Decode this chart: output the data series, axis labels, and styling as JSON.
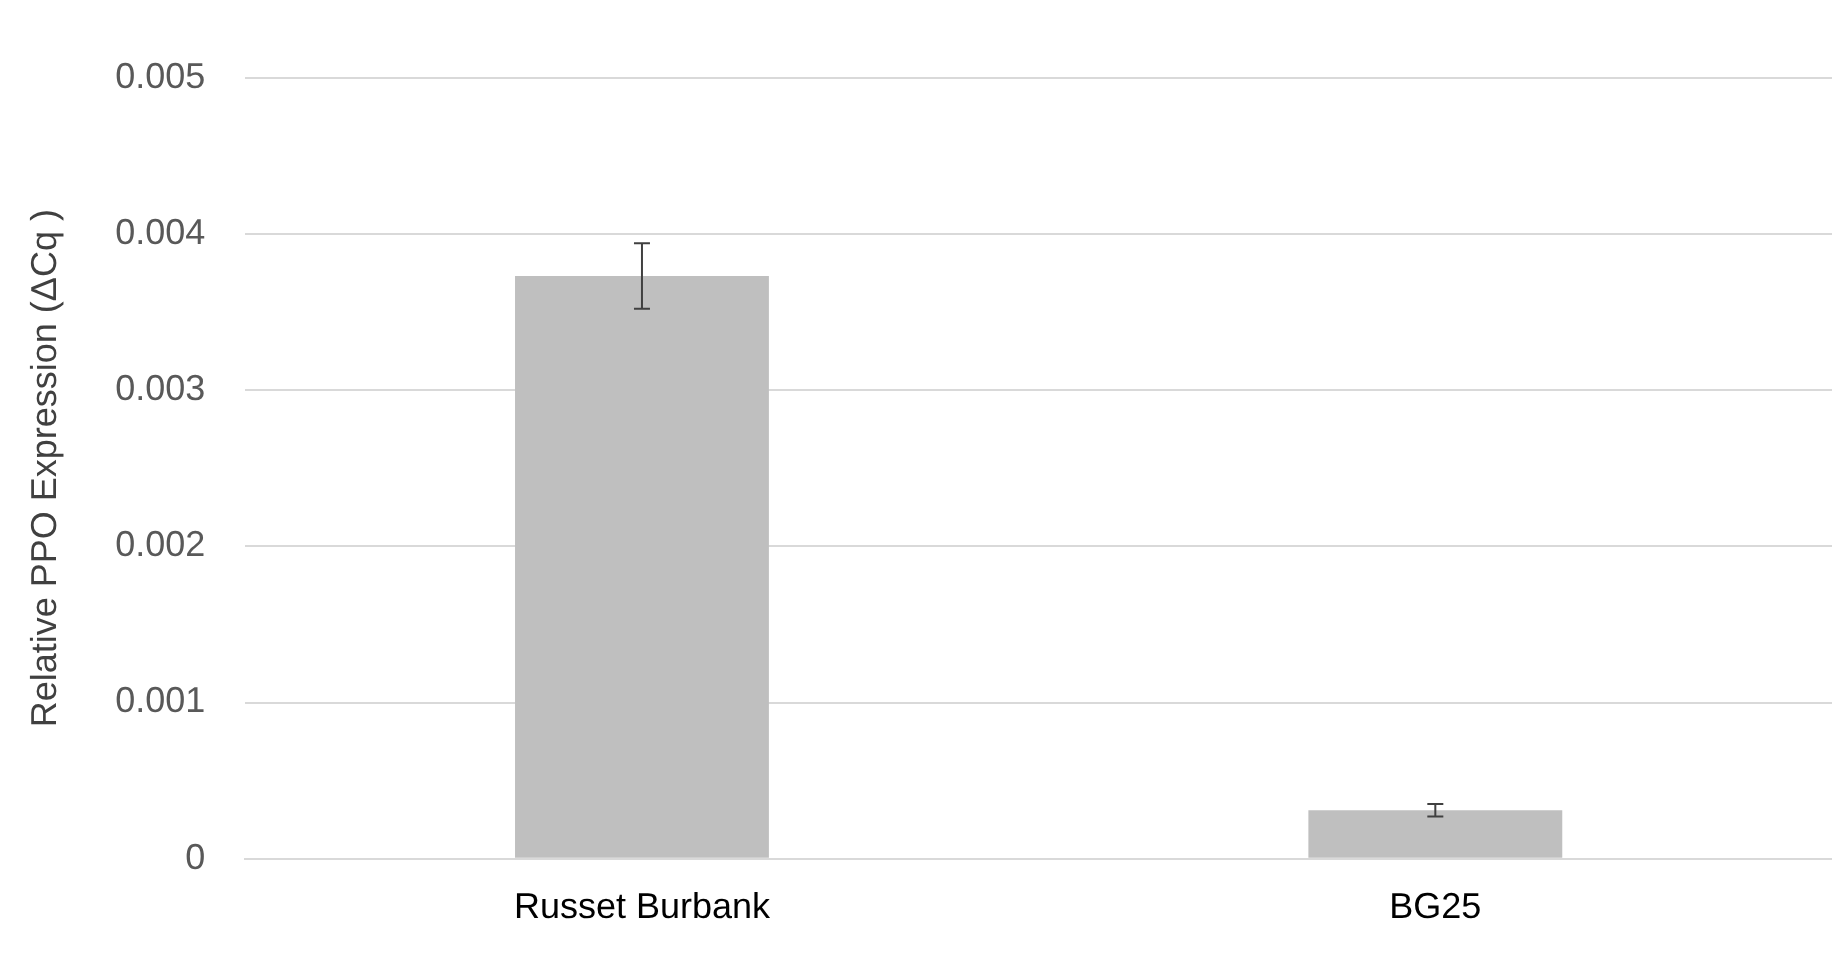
{
  "chart_data": {
    "type": "bar",
    "ylabel": "Relative PPO Expression (ΔCq )",
    "categories": [
      "Russet Burbank",
      "BG25"
    ],
    "values": [
      0.00373,
      0.00031
    ],
    "errors": [
      0.00021,
      4e-05
    ],
    "color": "#bfbfbf",
    "ylim": [
      0,
      0.005
    ],
    "yticks": [
      0,
      0.001,
      0.002,
      0.003,
      0.004,
      0.005
    ],
    "grid": "y"
  }
}
